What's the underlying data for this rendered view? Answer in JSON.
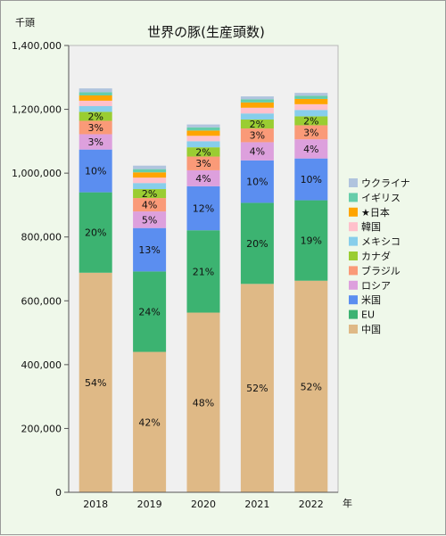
{
  "chart_data": {
    "type": "bar",
    "stacked": true,
    "title": "世界の豚(生産頭数)",
    "ylabel": "千頭",
    "xlabel": "年",
    "categories": [
      "2018",
      "2019",
      "2020",
      "2021",
      "2022"
    ],
    "ylim": [
      0,
      1400000
    ],
    "yticks": [
      "0",
      "200,000",
      "400,000",
      "600,000",
      "800,000",
      "1,000,000",
      "1,200,000",
      "1,400,000"
    ],
    "grid": false,
    "legend": "right",
    "series": [
      {
        "name": "中国",
        "color": "#dfb986",
        "values": [
          688000,
          440000,
          563000,
          653000,
          663000
        ],
        "labels": [
          "54%",
          "42%",
          "48%",
          "52%",
          "52%"
        ]
      },
      {
        "name": "EU",
        "color": "#3cb371",
        "values": [
          252000,
          252000,
          258000,
          254000,
          252000
        ],
        "labels": [
          "20%",
          "24%",
          "21%",
          "20%",
          "19%"
        ]
      },
      {
        "name": "米国",
        "color": "#5b8ef0",
        "values": [
          134000,
          136000,
          138000,
          133000,
          131000
        ],
        "labels": [
          "10%",
          "13%",
          "12%",
          "10%",
          "10%"
        ]
      },
      {
        "name": "ロシア",
        "color": "#dda0dd",
        "values": [
          48000,
          52000,
          50000,
          57000,
          60000
        ],
        "labels": [
          "3%",
          "5%",
          "4%",
          "4%",
          "4%"
        ]
      },
      {
        "name": "ブラジル",
        "color": "#fa9a78",
        "values": [
          42000,
          42000,
          43000,
          43000,
          44000
        ],
        "labels": [
          "3%",
          "4%",
          "3%",
          "3%",
          "3%"
        ]
      },
      {
        "name": "カナダ",
        "color": "#9acd32",
        "values": [
          28000,
          28000,
          29000,
          28000,
          28000
        ],
        "labels": [
          "2%",
          "2%",
          "2%",
          "2%",
          "2%"
        ]
      },
      {
        "name": "メキシコ",
        "color": "#87ceeb",
        "values": [
          18000,
          19000,
          19000,
          19000,
          20000
        ],
        "labels": []
      },
      {
        "name": "韓国",
        "color": "#ffc0cb",
        "values": [
          17000,
          17000,
          17000,
          18000,
          18000
        ],
        "labels": []
      },
      {
        "name": "★日本",
        "color": "#ffa500",
        "values": [
          16500,
          16500,
          16500,
          16500,
          16500
        ],
        "labels": []
      },
      {
        "name": "イギリス",
        "color": "#66cdaa",
        "values": [
          10000,
          10000,
          10000,
          10000,
          10000
        ],
        "labels": []
      },
      {
        "name": "ウクライナ",
        "color": "#b0c4de",
        "values": [
          12000,
          11000,
          9000,
          9000,
          9000
        ],
        "labels": []
      }
    ]
  }
}
